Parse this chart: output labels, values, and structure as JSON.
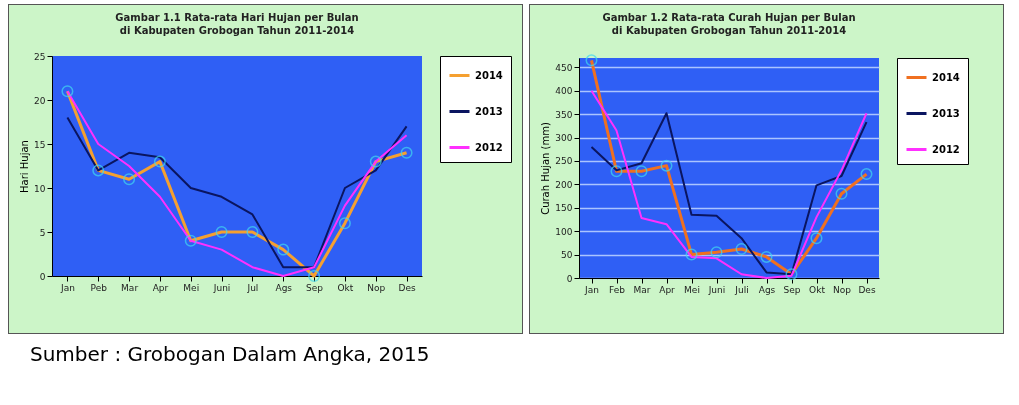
{
  "chart_data": [
    {
      "type": "line",
      "title": "Gambar 1.1 Rata-rata Hari Hujan per Bulan",
      "subtitle": "di Kabupaten Grobogan  Tahun 2011-2014",
      "ylabel": "Hari Hujan",
      "categories": [
        "Jan",
        "Peb",
        "Mar",
        "Apr",
        "Mei",
        "Juni",
        "Jul",
        "Ags",
        "Sep",
        "Okt",
        "Nop",
        "Des"
      ],
      "series": [
        {
          "name": "2014",
          "color": "#f5a030",
          "marker": "circle",
          "values": [
            21,
            12,
            11,
            13,
            4,
            5,
            5,
            3,
            0,
            6,
            13,
            14
          ]
        },
        {
          "name": "2013",
          "color": "#0a1560",
          "values": [
            18,
            12,
            14,
            13.5,
            10,
            9,
            7,
            1,
            1,
            10,
            12,
            17
          ]
        },
        {
          "name": "2012",
          "color": "#ff30ff",
          "values": [
            21,
            15,
            12.5,
            9,
            4,
            3,
            1,
            0,
            1,
            8,
            13,
            16
          ]
        }
      ],
      "ylim": [
        0,
        25
      ],
      "yticks": [
        0,
        5,
        10,
        15,
        20,
        25
      ],
      "grid": false,
      "legend": "right",
      "annotations": [
        "Sumber : Grobogan Dalam Angka, 2015"
      ]
    },
    {
      "type": "line",
      "title": "Gambar 1.2 Rata-rata Curah Hujan per Bulan",
      "subtitle": "di Kabupaten Grobogan  Tahun 2011-2014",
      "ylabel": "Curah Hujan (mm)",
      "categories": [
        "Jan",
        "Feb",
        "Mar",
        "Apr",
        "Mei",
        "Juni",
        "Juli",
        "Ags",
        "Sep",
        "Okt",
        "Nop",
        "Des"
      ],
      "series": [
        {
          "name": "2014",
          "color": "#f07020",
          "marker": "circle",
          "values": [
            465,
            228,
            228,
            240,
            50,
            55,
            62,
            45,
            8,
            85,
            180,
            222
          ]
        },
        {
          "name": "2013",
          "color": "#0a1560",
          "values": [
            280,
            230,
            245,
            352,
            135,
            133,
            85,
            12,
            8,
            198,
            218,
            333
          ]
        },
        {
          "name": "2012",
          "color": "#ff30ff",
          "values": [
            400,
            315,
            128,
            115,
            45,
            42,
            8,
            0,
            5,
            130,
            230,
            352
          ]
        }
      ],
      "ylim": [
        0,
        470
      ],
      "yticks": [
        0,
        50,
        100,
        150,
        200,
        250,
        300,
        350,
        400,
        450
      ],
      "grid": "y",
      "legend": "right"
    }
  ]
}
